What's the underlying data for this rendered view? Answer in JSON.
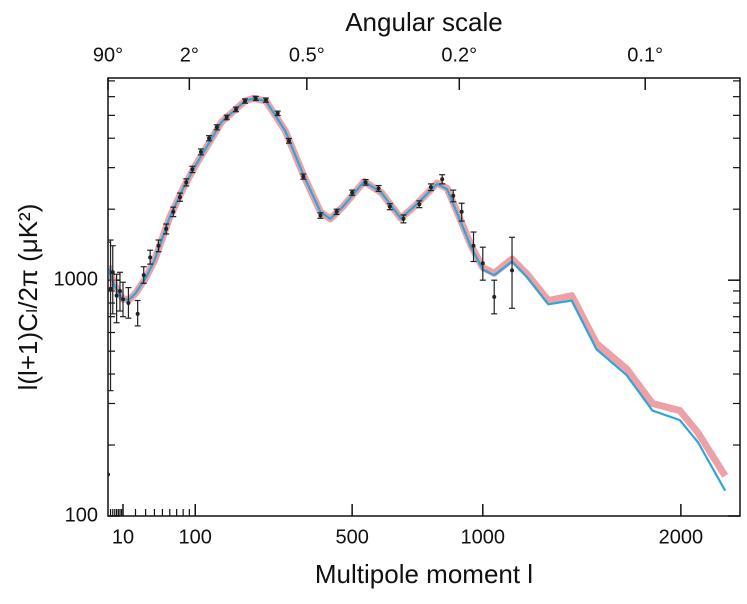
{
  "chart_data": {
    "type": "line",
    "title": "Angular scale",
    "xlabel": "Multipole moment l",
    "ylabel": "l(l+1)Cₗ/2π (μK²)",
    "x_scale_exponent": 0.6,
    "xlim": [
      2,
      2350
    ],
    "xticks": [
      10,
      100,
      500,
      1000,
      2000
    ],
    "xminorticks": [
      3,
      4,
      5,
      6,
      7,
      8,
      9,
      20,
      30,
      40,
      50,
      60,
      70,
      80,
      90
    ],
    "x2ticks": [
      {
        "value": 2,
        "label": "90°"
      },
      {
        "value": 90,
        "label": "2°"
      },
      {
        "value": 360,
        "label": "0.5°"
      },
      {
        "value": 900,
        "label": "0.2°"
      },
      {
        "value": 1800,
        "label": "0.1°"
      }
    ],
    "ylog": true,
    "ylim": [
      100,
      7200
    ],
    "yticks": [
      100,
      1000
    ],
    "yminorticks": [
      200,
      300,
      400,
      500,
      600,
      700,
      800,
      900,
      2000,
      3000,
      4000,
      5000,
      6000,
      7000
    ],
    "series": [
      {
        "type": "band",
        "color": "#e8808a",
        "x": [
          2,
          5,
          10,
          15,
          20,
          30,
          40,
          60,
          80,
          100,
          150,
          200,
          220,
          250,
          300,
          350,
          400,
          430,
          470,
          540,
          600,
          670,
          720,
          810,
          850,
          900,
          950,
          1000,
          1050,
          1130,
          1200,
          1300,
          1415,
          1540,
          1700,
          1840,
          1994,
          2100,
          2260
        ],
        "values": [
          1150,
          950,
          830,
          830,
          880,
          1020,
          1210,
          1850,
          2450,
          3050,
          4700,
          5750,
          5900,
          5750,
          4300,
          2800,
          1950,
          1820,
          2050,
          2620,
          2350,
          1830,
          2050,
          2580,
          2450,
          1850,
          1400,
          1130,
          1070,
          1230,
          1060,
          820,
          860,
          540,
          420,
          300,
          280,
          225,
          148
        ]
      },
      {
        "type": "curve",
        "color": "#2ea6d8",
        "x": [
          2,
          5,
          10,
          15,
          20,
          30,
          40,
          60,
          80,
          100,
          150,
          200,
          220,
          250,
          300,
          350,
          400,
          430,
          470,
          540,
          600,
          670,
          720,
          810,
          850,
          900,
          950,
          1000,
          1050,
          1130,
          1200,
          1300,
          1415,
          1540,
          1700,
          1840,
          1994,
          2100,
          2260
        ],
        "values": [
          1130,
          940,
          825,
          830,
          880,
          1020,
          1210,
          1850,
          2450,
          3050,
          4700,
          5750,
          5900,
          5750,
          4300,
          2800,
          1950,
          1820,
          2050,
          2620,
          2350,
          1830,
          2050,
          2560,
          2430,
          1830,
          1380,
          1110,
          1050,
          1200,
          1030,
          790,
          820,
          510,
          395,
          280,
          255,
          205,
          128
        ]
      },
      {
        "type": "errorbar",
        "color": "#222222",
        "x": [
          2,
          3,
          4,
          6,
          8,
          10,
          14,
          22,
          28,
          35,
          45,
          55,
          65,
          75,
          85,
          95,
          110,
          125,
          140,
          160,
          180,
          200,
          225,
          250,
          280,
          310,
          350,
          400,
          450,
          500,
          545,
          590,
          630,
          680,
          740,
          785,
          830,
          875,
          910,
          960,
          1000,
          1050,
          1130
        ],
        "values": [
          150,
          920,
          1080,
          860,
          900,
          830,
          800,
          720,
          1050,
          1250,
          1400,
          1650,
          1950,
          2250,
          2600,
          2950,
          3500,
          4000,
          4450,
          4900,
          5300,
          5750,
          5900,
          5800,
          5100,
          3900,
          2750,
          1880,
          1950,
          2350,
          2600,
          2450,
          2050,
          1820,
          2100,
          2480,
          2680,
          2280,
          1950,
          1400,
          1180,
          850,
          1100
        ],
        "lower": [
          100,
          340,
          720,
          660,
          740,
          700,
          690,
          640,
          970,
          1170,
          1320,
          1570,
          1860,
          2160,
          2510,
          2860,
          3400,
          3900,
          4340,
          4790,
          5180,
          5630,
          5780,
          5680,
          4990,
          3810,
          2680,
          1830,
          1900,
          2290,
          2530,
          2380,
          1990,
          1750,
          2030,
          2400,
          2560,
          2150,
          1780,
          1200,
          1000,
          720,
          760
        ],
        "upper": [
          1450,
          1480,
          1400,
          1060,
          1080,
          980,
          930,
          820,
          1140,
          1340,
          1480,
          1730,
          2040,
          2340,
          2690,
          3040,
          3600,
          4100,
          4560,
          5010,
          5420,
          5870,
          6020,
          5920,
          5210,
          3990,
          2820,
          1930,
          2000,
          2410,
          2670,
          2520,
          2110,
          1890,
          2170,
          2560,
          2800,
          2410,
          2120,
          1600,
          1380,
          1000,
          1520
        ]
      }
    ]
  }
}
